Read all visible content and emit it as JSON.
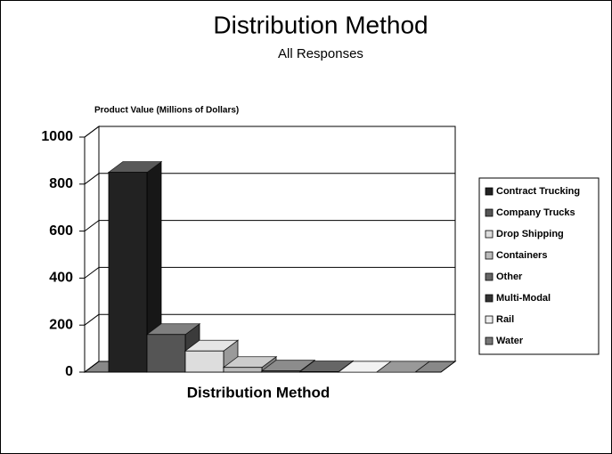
{
  "chart_data": {
    "type": "bar3d",
    "title": "Distribution Method",
    "subtitle": "All Responses",
    "y_label": "Product Value (Millions of Dollars)",
    "x_label": "Distribution Method",
    "categories": [
      null
    ],
    "series": [
      {
        "name": "Contract Trucking",
        "color": "#222222",
        "values": [
          850
        ]
      },
      {
        "name": "Company Trucks",
        "color": "#555555",
        "values": [
          160
        ]
      },
      {
        "name": "Drop Shipping",
        "color": "#dddddd",
        "values": [
          90
        ]
      },
      {
        "name": "Containers",
        "color": "#bbbbbb",
        "values": [
          20
        ]
      },
      {
        "name": "Other",
        "color": "#666666",
        "values": [
          5
        ]
      },
      {
        "name": "Multi-Modal",
        "color": "#333333",
        "values": [
          2
        ]
      },
      {
        "name": "Rail",
        "color": "#eeeeee",
        "values": [
          0
        ]
      },
      {
        "name": "Water",
        "color": "#777777",
        "values": [
          0
        ]
      }
    ],
    "ylim": [
      0,
      1000
    ],
    "yticks": [
      0,
      200,
      400,
      600,
      800,
      1000
    ],
    "grid": true,
    "legend": "right"
  }
}
